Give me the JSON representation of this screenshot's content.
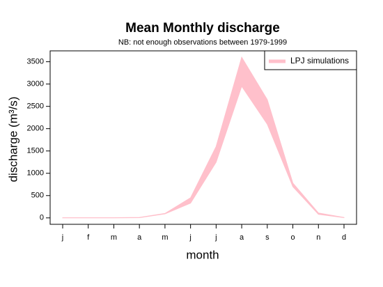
{
  "chart_data": {
    "type": "band",
    "title": "Mean Monthly discharge",
    "subtitle": "NB: not enough observations between 1979-1999",
    "x_label": "month",
    "y_label": "discharge (m³/s)",
    "categories": [
      "j",
      "f",
      "m",
      "a",
      "m",
      "j",
      "j",
      "a",
      "s",
      "o",
      "n",
      "d"
    ],
    "series": [
      {
        "name": "LPJ simulations",
        "color": "#ffc0cb",
        "upper": [
          5,
          5,
          5,
          10,
          100,
          450,
          1600,
          3600,
          2650,
          780,
          110,
          10
        ],
        "lower": [
          0,
          0,
          0,
          5,
          90,
          330,
          1250,
          2950,
          2100,
          700,
          80,
          5
        ]
      }
    ],
    "ylim": [
      -144,
      3744
    ],
    "yticks": [
      0,
      500,
      1000,
      1500,
      2000,
      2500,
      3000,
      3500
    ],
    "legend": "top-right"
  }
}
